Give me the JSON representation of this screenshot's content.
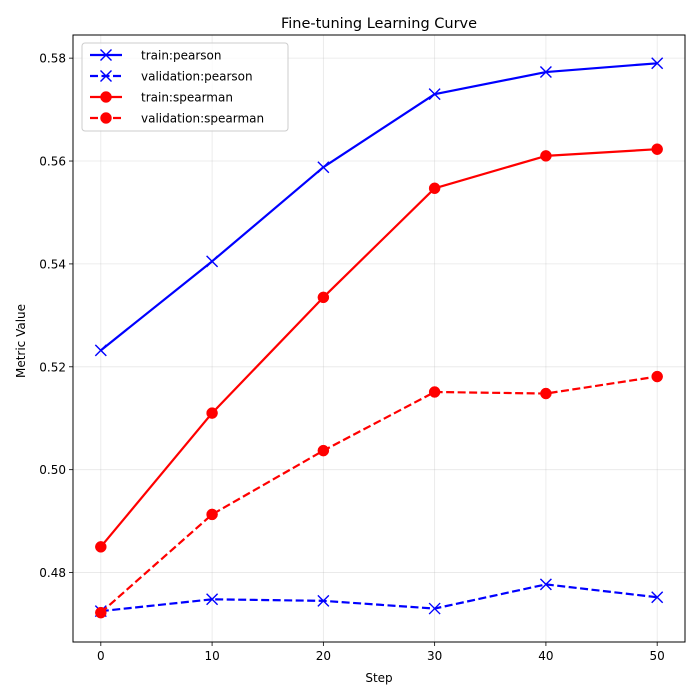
{
  "chart_data": {
    "type": "line",
    "title": "Fine-tuning Learning Curve",
    "xlabel": "Step",
    "ylabel": "Metric Value",
    "x": [
      0,
      10,
      20,
      30,
      40,
      50
    ],
    "xlim": [
      -2.5,
      52.5
    ],
    "ylim": [
      0.4665,
      0.5845
    ],
    "xticks": [
      0,
      10,
      20,
      30,
      40,
      50
    ],
    "yticks": [
      0.48,
      0.5,
      0.52,
      0.54,
      0.56,
      0.58
    ],
    "ytick_labels": [
      "0.48",
      "0.50",
      "0.52",
      "0.54",
      "0.56",
      "0.58"
    ],
    "grid": true,
    "legend_position": "top-left",
    "series": [
      {
        "name": "train:pearson",
        "color": "#0000ff",
        "linestyle": "solid",
        "marker": "x",
        "values": [
          0.5232,
          0.5405,
          0.5588,
          0.573,
          0.5773,
          0.579
        ]
      },
      {
        "name": "validation:pearson",
        "color": "#0000ff",
        "linestyle": "dashed",
        "marker": "x",
        "values": [
          0.4725,
          0.4748,
          0.4745,
          0.473,
          0.4777,
          0.4752
        ]
      },
      {
        "name": "train:spearman",
        "color": "#ff0000",
        "linestyle": "solid",
        "marker": "o",
        "values": [
          0.485,
          0.511,
          0.5335,
          0.5547,
          0.561,
          0.5623
        ]
      },
      {
        "name": "validation:spearman",
        "color": "#ff0000",
        "linestyle": "dashed",
        "marker": "o",
        "values": [
          0.4722,
          0.4913,
          0.5037,
          0.5151,
          0.5148,
          0.5181
        ]
      }
    ]
  }
}
